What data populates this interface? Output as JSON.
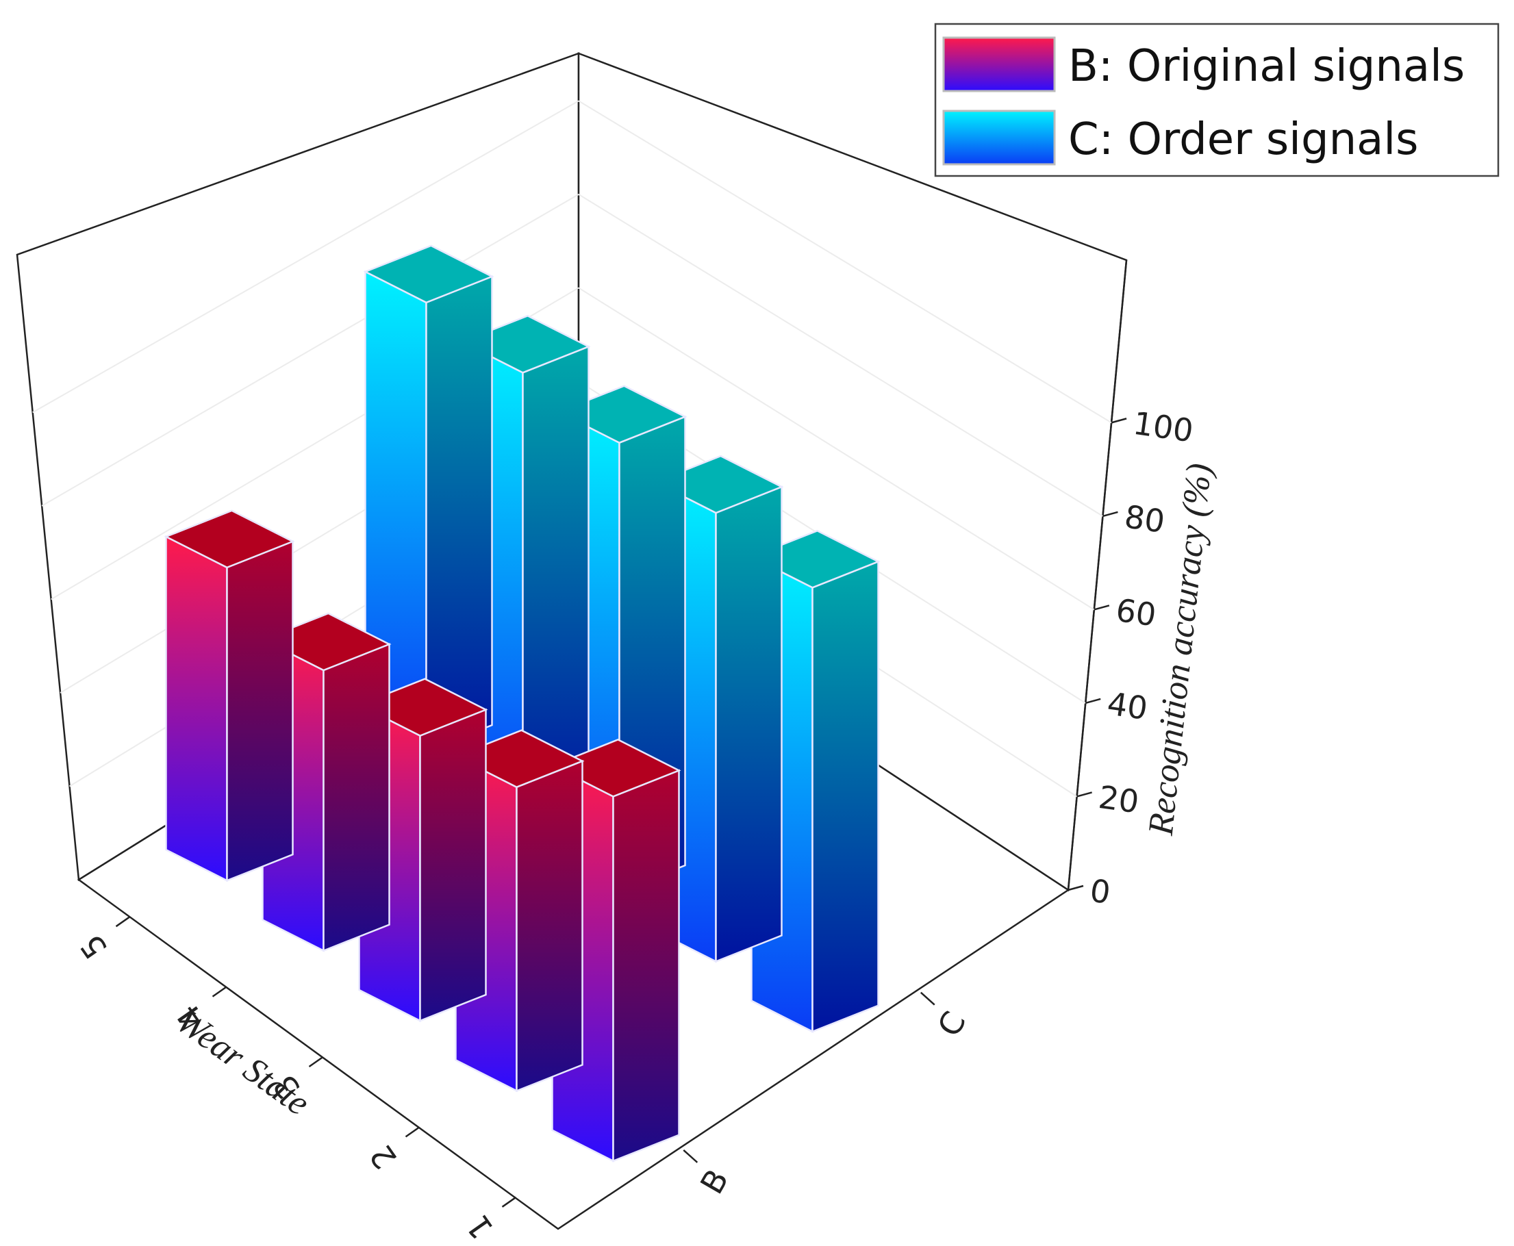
{
  "chart_data": {
    "type": "bar3d",
    "title": "",
    "xlabel": "Wear State",
    "ylabel": "",
    "zlabel": "Recognition accuracy (%)",
    "wear_state_ticks": [
      "5",
      "4",
      "3",
      "2",
      "1"
    ],
    "group_ticks": [
      "B",
      "C"
    ],
    "z_ticks": [
      "0",
      "20",
      "40",
      "60",
      "80",
      "100"
    ],
    "zlim": [
      0,
      115
    ],
    "legend_position": "top-right",
    "legend": [
      {
        "key": "B",
        "label": "B: Original signals"
      },
      {
        "key": "C",
        "label": "C: Order signals"
      }
    ],
    "categories": [
      "1",
      "2",
      "3",
      "4",
      "5"
    ],
    "series": [
      {
        "name": "B: Original signals",
        "key": "B",
        "values": [
          78,
          65,
          61,
          60,
          67
        ],
        "colors": {
          "top": "#ff1a4b",
          "bottom": "#2c0cff",
          "side_top": "#b0002e",
          "side_bottom": "#1a0a8a",
          "cap": "#b3001f"
        }
      },
      {
        "name": "C: Order signals",
        "key": "C",
        "values": [
          95,
          96,
          96,
          96,
          96
        ],
        "colors": {
          "top": "#00f2ff",
          "bottom": "#0a3cf5",
          "side_top": "#00a9aa",
          "side_bottom": "#0012a0",
          "cap": "#00b3b3"
        }
      }
    ]
  }
}
